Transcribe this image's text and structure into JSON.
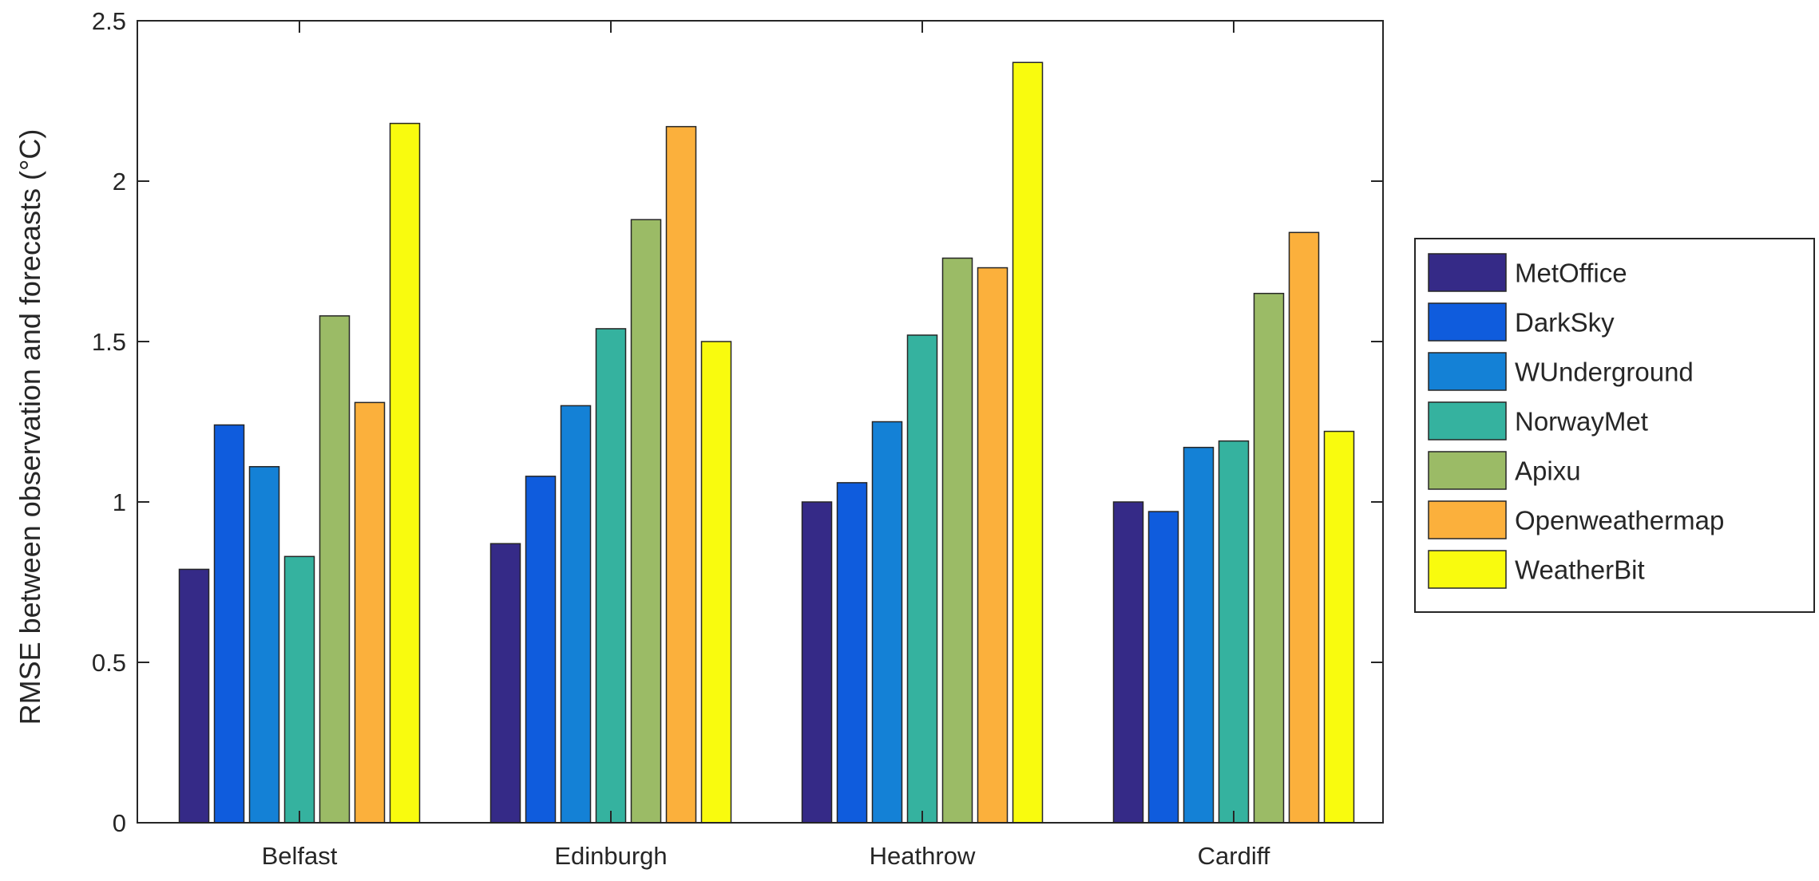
{
  "chart_data": {
    "type": "bar",
    "title": "",
    "xlabel": "",
    "ylabel": "RMSE between observation and forecasts (°C)",
    "ylim": [
      0,
      2.5
    ],
    "yticks": [
      "0",
      "0.5",
      "1",
      "1.5",
      "2",
      "2.5"
    ],
    "categories": [
      "Belfast",
      "Edinburgh",
      "Heathrow",
      "Cardiff"
    ],
    "grid": false,
    "legend_position": "right",
    "series": [
      {
        "name": "MetOffice",
        "color": "#352a87",
        "values": [
          0.79,
          0.87,
          1.0,
          1.0
        ]
      },
      {
        "name": "DarkSky",
        "color": "#0f5cdd",
        "values": [
          1.24,
          1.08,
          1.06,
          0.97
        ]
      },
      {
        "name": "WUnderground",
        "color": "#1481d6",
        "values": [
          1.11,
          1.3,
          1.25,
          1.17
        ]
      },
      {
        "name": "NorwayMet",
        "color": "#35b29f",
        "values": [
          0.83,
          1.54,
          1.52,
          1.19
        ]
      },
      {
        "name": "Apixu",
        "color": "#9bbb66",
        "values": [
          1.58,
          1.88,
          1.76,
          1.65
        ]
      },
      {
        "name": "Openweathermap",
        "color": "#fbb03c",
        "values": [
          1.31,
          2.17,
          1.73,
          1.84
        ]
      },
      {
        "name": "WeatherBit",
        "color": "#f9fb0e",
        "values": [
          2.18,
          1.5,
          2.37,
          1.22
        ]
      }
    ]
  }
}
